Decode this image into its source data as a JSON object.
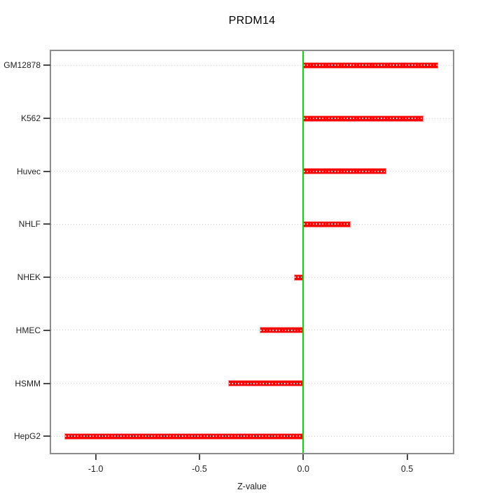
{
  "chart_data": {
    "type": "bar",
    "orientation": "horizontal",
    "title": "PRDM14",
    "xlabel": "Z-value",
    "ylabel": "",
    "categories": [
      "GM12878",
      "K562",
      "Huvec",
      "NHLF",
      "NHEK",
      "HMEC",
      "HSMM",
      "HepG2"
    ],
    "values": [
      0.65,
      0.58,
      0.4,
      0.23,
      -0.045,
      -0.21,
      -0.36,
      -1.15
    ],
    "series_name": "Z-value",
    "x_ticks": [
      -1.0,
      -0.5,
      0.0,
      0.5
    ],
    "x_tick_labels": [
      "-1.0",
      "-0.5",
      "0.0",
      "0.5"
    ],
    "xlim": [
      -1.218,
      0.724
    ],
    "zero_line_x": 0,
    "grid": "dotted-horizontal-per-category",
    "legend_position": "none",
    "colors": {
      "background": "#ffffff",
      "bar": "#ff0000",
      "bar_edge": "#ff9191",
      "bar_center_dots": "#ffffff",
      "zero_line": "#00e100",
      "box_border": "#8c8c8c",
      "grid": "#d2d2d2",
      "tick": "#4a4a4a",
      "label": "#1f1f1f",
      "title": "#000000"
    }
  }
}
